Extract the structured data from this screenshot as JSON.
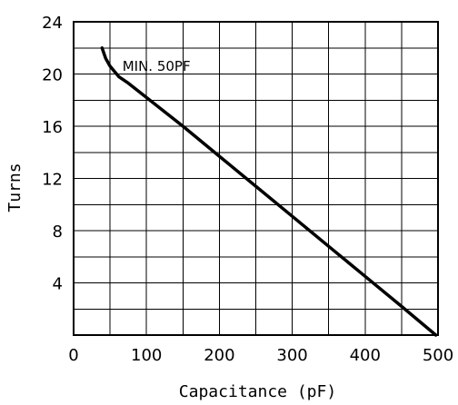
{
  "chart_data": {
    "type": "line",
    "title": "",
    "xlabel": "Capacitance (pF)",
    "ylabel": "Turns",
    "xlim": [
      0,
      500
    ],
    "ylim": [
      0,
      24
    ],
    "x_ticks": [
      0,
      100,
      200,
      300,
      400,
      500
    ],
    "y_ticks": [
      4,
      8,
      12,
      16,
      20,
      24
    ],
    "x_tick_labels": [
      "0",
      "100",
      "200",
      "300",
      "400",
      "500"
    ],
    "y_tick_labels": [
      "4",
      "8",
      "12",
      "16",
      "20",
      "24"
    ],
    "y_zero_label": "0",
    "grid": true,
    "x_grid_step": 50,
    "y_grid_step": 2,
    "series": [
      {
        "x": [
          39,
          44,
          50,
          56,
          62,
          75,
          100,
          150,
          200,
          250,
          300,
          350,
          400,
          450,
          497
        ],
        "y": [
          22.0,
          21.2,
          20.6,
          20.2,
          19.8,
          19.3,
          18.2,
          16.0,
          13.7,
          11.4,
          9.1,
          6.8,
          4.5,
          2.2,
          0.0
        ]
      }
    ],
    "annotations": [
      {
        "text": "MIN. 50PF",
        "x": 62,
        "y": 20.6
      }
    ]
  }
}
